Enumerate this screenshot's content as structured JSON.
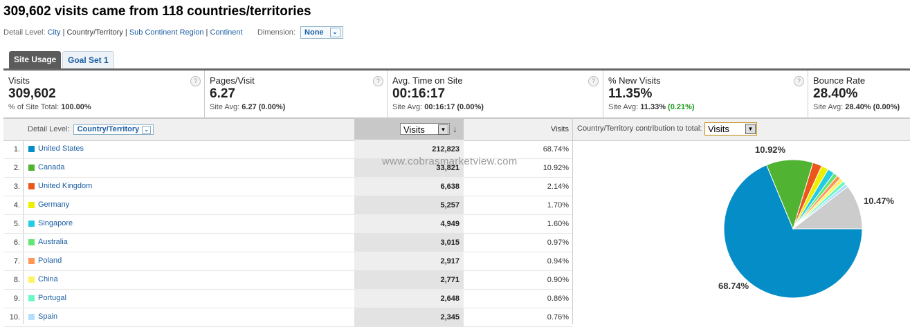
{
  "title": "309,602 visits came from 118 countries/territories",
  "detail_level": {
    "label": "Detail Level:",
    "options": [
      "City",
      "Country/Territory",
      "Sub Continent Region",
      "Continent"
    ],
    "current": "Country/Territory",
    "dimension_label": "Dimension:",
    "dimension_value": "None"
  },
  "tabs": [
    {
      "label": "Site Usage",
      "active": true
    },
    {
      "label": "Goal Set 1",
      "active": false
    }
  ],
  "metrics": [
    {
      "label": "Visits",
      "value": "309,602",
      "sub_prefix": "% of Site Total: ",
      "sub_value": "100.00%",
      "sub_change": ""
    },
    {
      "label": "Pages/Visit",
      "value": "6.27",
      "sub_prefix": "Site Avg: ",
      "sub_value": "6.27",
      "sub_change": "(0.00%)"
    },
    {
      "label": "Avg. Time on Site",
      "value": "00:16:17",
      "sub_prefix": "Site Avg: ",
      "sub_value": "00:16:17",
      "sub_change": "(0.00%)"
    },
    {
      "label": "% New Visits",
      "value": "11.35%",
      "sub_prefix": "Site Avg: ",
      "sub_value": "11.33%",
      "sub_change": "(0.21%)"
    },
    {
      "label": "Bounce Rate",
      "value": "28.40%",
      "sub_prefix": "Site Avg: ",
      "sub_value": "28.40%",
      "sub_change": "(0.00%)"
    }
  ],
  "table_header": {
    "detail_label": "Detail Level:",
    "detail_value": "Country/Territory",
    "metric_select": "Visits",
    "col_visits": "Visits",
    "contrib_label": "Country/Territory contribution to total:",
    "contrib_select": "Visits"
  },
  "rows": [
    {
      "num": "1.",
      "country": "United States",
      "color": "#058dc7",
      "visits": "212,823",
      "pct": "68.74%"
    },
    {
      "num": "2.",
      "country": "Canada",
      "color": "#50b432",
      "visits": "33,821",
      "pct": "10.92%"
    },
    {
      "num": "3.",
      "country": "United Kingdom",
      "color": "#ed561b",
      "visits": "6,638",
      "pct": "2.14%"
    },
    {
      "num": "4.",
      "country": "Germany",
      "color": "#edef00",
      "visits": "5,257",
      "pct": "1.70%"
    },
    {
      "num": "5.",
      "country": "Singapore",
      "color": "#24cbe5",
      "visits": "4,949",
      "pct": "1.60%"
    },
    {
      "num": "6.",
      "country": "Australia",
      "color": "#64e572",
      "visits": "3,015",
      "pct": "0.97%"
    },
    {
      "num": "7.",
      "country": "Poland",
      "color": "#ff9655",
      "visits": "2,917",
      "pct": "0.94%"
    },
    {
      "num": "8.",
      "country": "China",
      "color": "#fff263",
      "visits": "2,771",
      "pct": "0.90%"
    },
    {
      "num": "9.",
      "country": "Portugal",
      "color": "#6af9c4",
      "visits": "2,648",
      "pct": "0.86%"
    },
    {
      "num": "10.",
      "country": "Spain",
      "color": "#b2deff",
      "visits": "2,345",
      "pct": "0.76%"
    }
  ],
  "watermark": "www.cobrasmarketview.com",
  "pie": {
    "other_color": "#cccccc",
    "other_pct": 10.47,
    "labels": {
      "largest": "68.74%",
      "second": "10.92%",
      "other": "10.47%"
    }
  },
  "icons": {
    "help": "help-icon",
    "sort": "sort-down-arrow-icon",
    "dropdown": "dropdown-arrow-icon"
  }
}
